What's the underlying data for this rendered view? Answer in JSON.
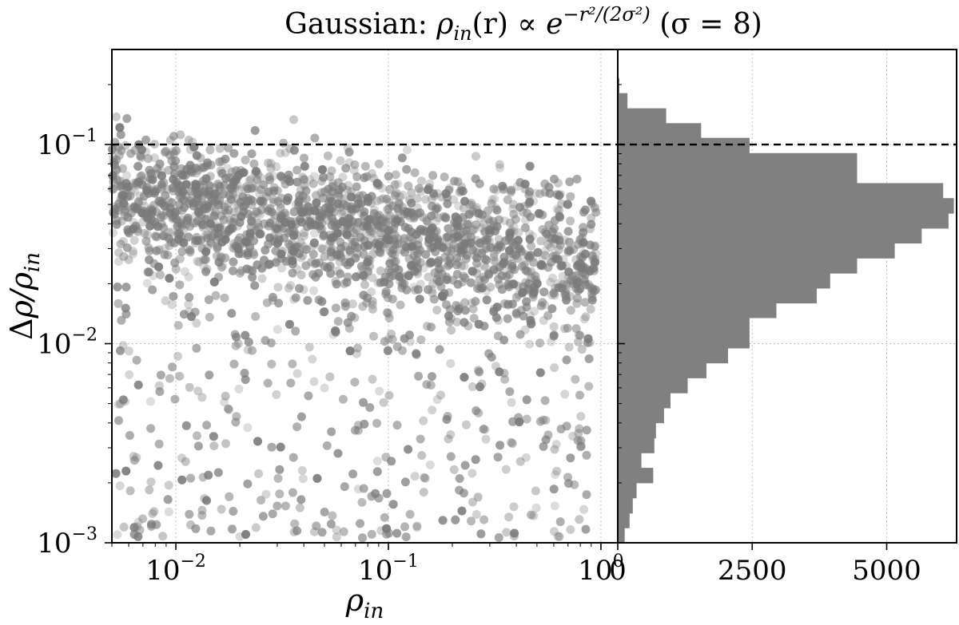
{
  "chart_data": {
    "title": "Gaussian: ρin(r) ∝ e^(−r²/(2σ²)) (σ = 8)",
    "panels": [
      {
        "type": "scatter",
        "xlabel": "ρin",
        "ylabel": "Δρ/ρin",
        "xscale": "log",
        "yscale": "log",
        "xlim": [
          0.005,
          1.2
        ],
        "ylim": [
          0.001,
          0.3
        ],
        "x_ticks": [
          "10^-2",
          "10^-1",
          "10^0"
        ],
        "y_ticks": [
          "10^-1",
          "10^-2",
          "10^-3"
        ],
        "grid": true,
        "point_color": "#7a7a7a",
        "description_of_points": "roughly 6000 points; dense band at y 0.02–0.1 for small x, spreading to y ~0.001 throughout",
        "reference_line": {
          "y": 0.1,
          "style": "dashed",
          "color": "#000000"
        }
      },
      {
        "type": "bar",
        "orientation": "horizontal",
        "xscale": "linear",
        "yscale": "log",
        "xlim": [
          0,
          6300
        ],
        "ylim": [
          0.001,
          0.3
        ],
        "x_ticks": [
          "0",
          "2500",
          "5000"
        ],
        "bar_color": "#808080",
        "bins": [
          {
            "y_low": 0.001,
            "y_high": 0.00119,
            "count": 130
          },
          {
            "y_low": 0.00119,
            "y_high": 0.00141,
            "count": 220
          },
          {
            "y_low": 0.00141,
            "y_high": 0.00168,
            "count": 280
          },
          {
            "y_low": 0.00168,
            "y_high": 0.002,
            "count": 350
          },
          {
            "y_low": 0.002,
            "y_high": 0.00238,
            "count": 660
          },
          {
            "y_low": 0.00238,
            "y_high": 0.00283,
            "count": 440
          },
          {
            "y_low": 0.00283,
            "y_high": 0.00336,
            "count": 680
          },
          {
            "y_low": 0.00336,
            "y_high": 0.004,
            "count": 710
          },
          {
            "y_low": 0.004,
            "y_high": 0.00476,
            "count": 860
          },
          {
            "y_low": 0.00476,
            "y_high": 0.00566,
            "count": 980
          },
          {
            "y_low": 0.00566,
            "y_high": 0.00673,
            "count": 1300
          },
          {
            "y_low": 0.00673,
            "y_high": 0.008,
            "count": 1650
          },
          {
            "y_low": 0.008,
            "y_high": 0.00951,
            "count": 2050
          },
          {
            "y_low": 0.00951,
            "y_high": 0.0113,
            "count": 2450
          },
          {
            "y_low": 0.0113,
            "y_high": 0.0135,
            "count": 2450
          },
          {
            "y_low": 0.0135,
            "y_high": 0.016,
            "count": 2950
          },
          {
            "y_low": 0.016,
            "y_high": 0.019,
            "count": 3700
          },
          {
            "y_low": 0.019,
            "y_high": 0.0226,
            "count": 3950
          },
          {
            "y_low": 0.0226,
            "y_high": 0.0269,
            "count": 4450
          },
          {
            "y_low": 0.0269,
            "y_high": 0.032,
            "count": 5150
          },
          {
            "y_low": 0.032,
            "y_high": 0.038,
            "count": 5650
          },
          {
            "y_low": 0.038,
            "y_high": 0.0452,
            "count": 6150
          },
          {
            "y_low": 0.0452,
            "y_high": 0.0538,
            "count": 6250
          },
          {
            "y_low": 0.0538,
            "y_high": 0.064,
            "count": 6050
          },
          {
            "y_low": 0.064,
            "y_high": 0.0761,
            "count": 4450
          },
          {
            "y_low": 0.0761,
            "y_high": 0.0905,
            "count": 4450
          },
          {
            "y_low": 0.0905,
            "y_high": 0.108,
            "count": 2450
          },
          {
            "y_low": 0.108,
            "y_high": 0.128,
            "count": 1550
          },
          {
            "y_low": 0.128,
            "y_high": 0.152,
            "count": 900
          },
          {
            "y_low": 0.152,
            "y_high": 0.181,
            "count": 180
          },
          {
            "y_low": 0.181,
            "y_high": 0.215,
            "count": 30
          }
        ],
        "reference_line": {
          "y": 0.1,
          "style": "dashed",
          "color": "#000000"
        }
      }
    ]
  }
}
